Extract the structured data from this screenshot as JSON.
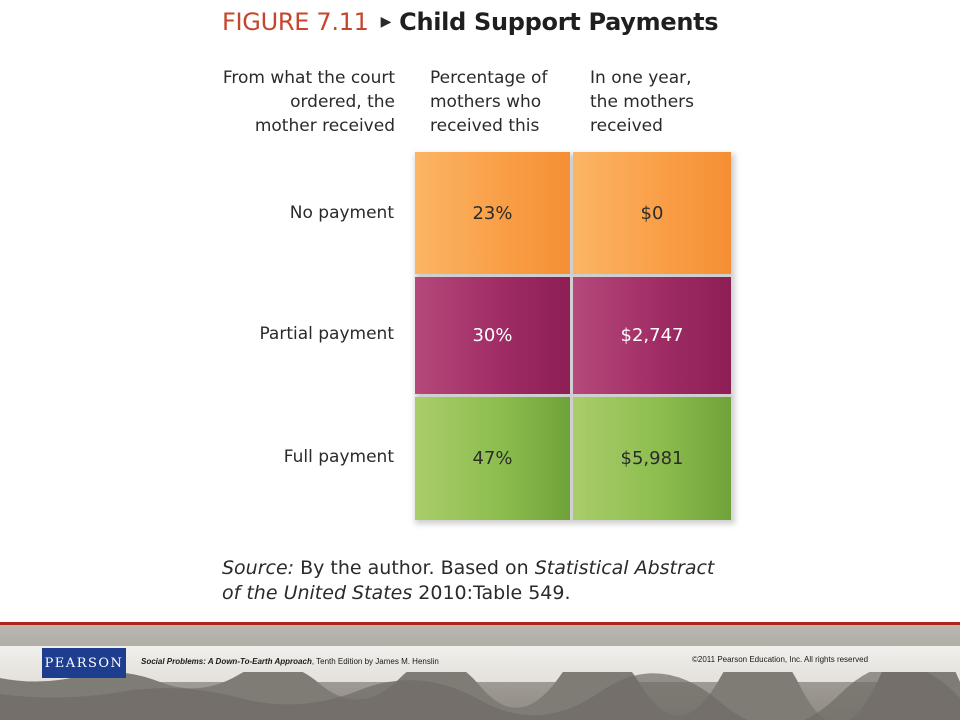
{
  "figure": {
    "number": "FIGURE 7.11",
    "arrow_glyph": "▶",
    "title": "Child Support Payments"
  },
  "chart_data": {
    "type": "table",
    "title": "Child Support Payments",
    "columns": [
      [
        "From what the court",
        "ordered, the",
        "mother received"
      ],
      [
        "Percentage of",
        "mothers who",
        "received this"
      ],
      [
        "In one year,",
        "the mothers",
        "received"
      ]
    ],
    "rows": [
      {
        "label": "No payment",
        "percentage": "23%",
        "amount": "$0",
        "color": "#f99d45"
      },
      {
        "label": "Partial payment",
        "percentage": "30%",
        "amount": "$2,747",
        "color": "#a02c65"
      },
      {
        "label": "Full payment",
        "percentage": "47%",
        "amount": "$5,981",
        "color": "#8dbd4e"
      }
    ]
  },
  "source": {
    "label": "Source:",
    "text_1": " By the author. Based on ",
    "publication_a": "Statistical Abstract",
    "publication_b": "of the United States",
    "text_2": " 2010:Table 549."
  },
  "footer": {
    "logo": "PEARSON",
    "book_title": "Social Problems: A Down-To-Earth Approach",
    "book_rest": ", Tenth Edition by James M. Henslin",
    "copyright": "©2011 Pearson Education, Inc.  All rights reserved",
    "accent_color": "#b0261e"
  }
}
